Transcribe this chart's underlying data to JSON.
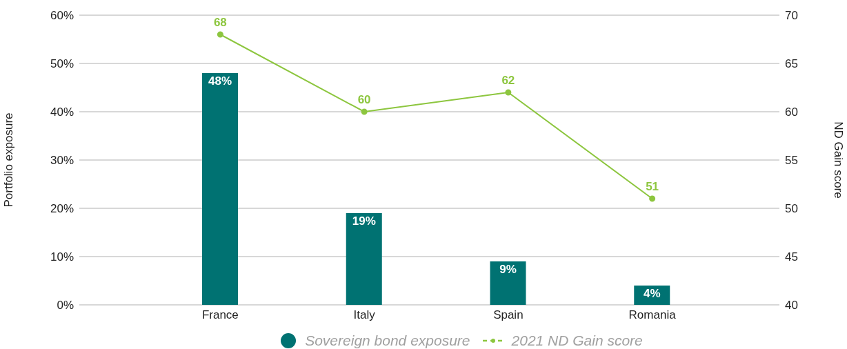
{
  "chart_data": {
    "type": "bar",
    "ylabel": "Portfolio exposure",
    "y2label": "ND Gain score",
    "categories": [
      "France",
      "Italy",
      "Spain",
      "Romania"
    ],
    "series": [
      {
        "name": "Sovereign bond exposure",
        "color": "#007272",
        "values": [
          48,
          19,
          9,
          4
        ],
        "value_labels": [
          "48%",
          "19%",
          "9%",
          "4%"
        ],
        "marker": "circle"
      },
      {
        "name": "2021 ND Gain score",
        "type": "line",
        "axis": "y2",
        "color": "#8dc63f",
        "values": [
          68,
          60,
          62,
          51
        ],
        "value_labels": [
          "68",
          "60",
          "62",
          "51"
        ],
        "marker": "circle",
        "line_style": "solid"
      }
    ],
    "ylim": [
      0,
      60
    ],
    "yticks": [
      {
        "value": 0,
        "label": "0%"
      },
      {
        "value": 10,
        "label": "10%"
      },
      {
        "value": 20,
        "label": "20%"
      },
      {
        "value": 30,
        "label": "30%"
      },
      {
        "value": 40,
        "label": "40%"
      },
      {
        "value": 50,
        "label": "50%"
      },
      {
        "value": 60,
        "label": "60%"
      }
    ],
    "y2lim": [
      40,
      70
    ],
    "y2ticks": [
      40,
      45,
      50,
      55,
      60,
      65,
      70
    ],
    "grid": "y",
    "legend": "bottom"
  }
}
